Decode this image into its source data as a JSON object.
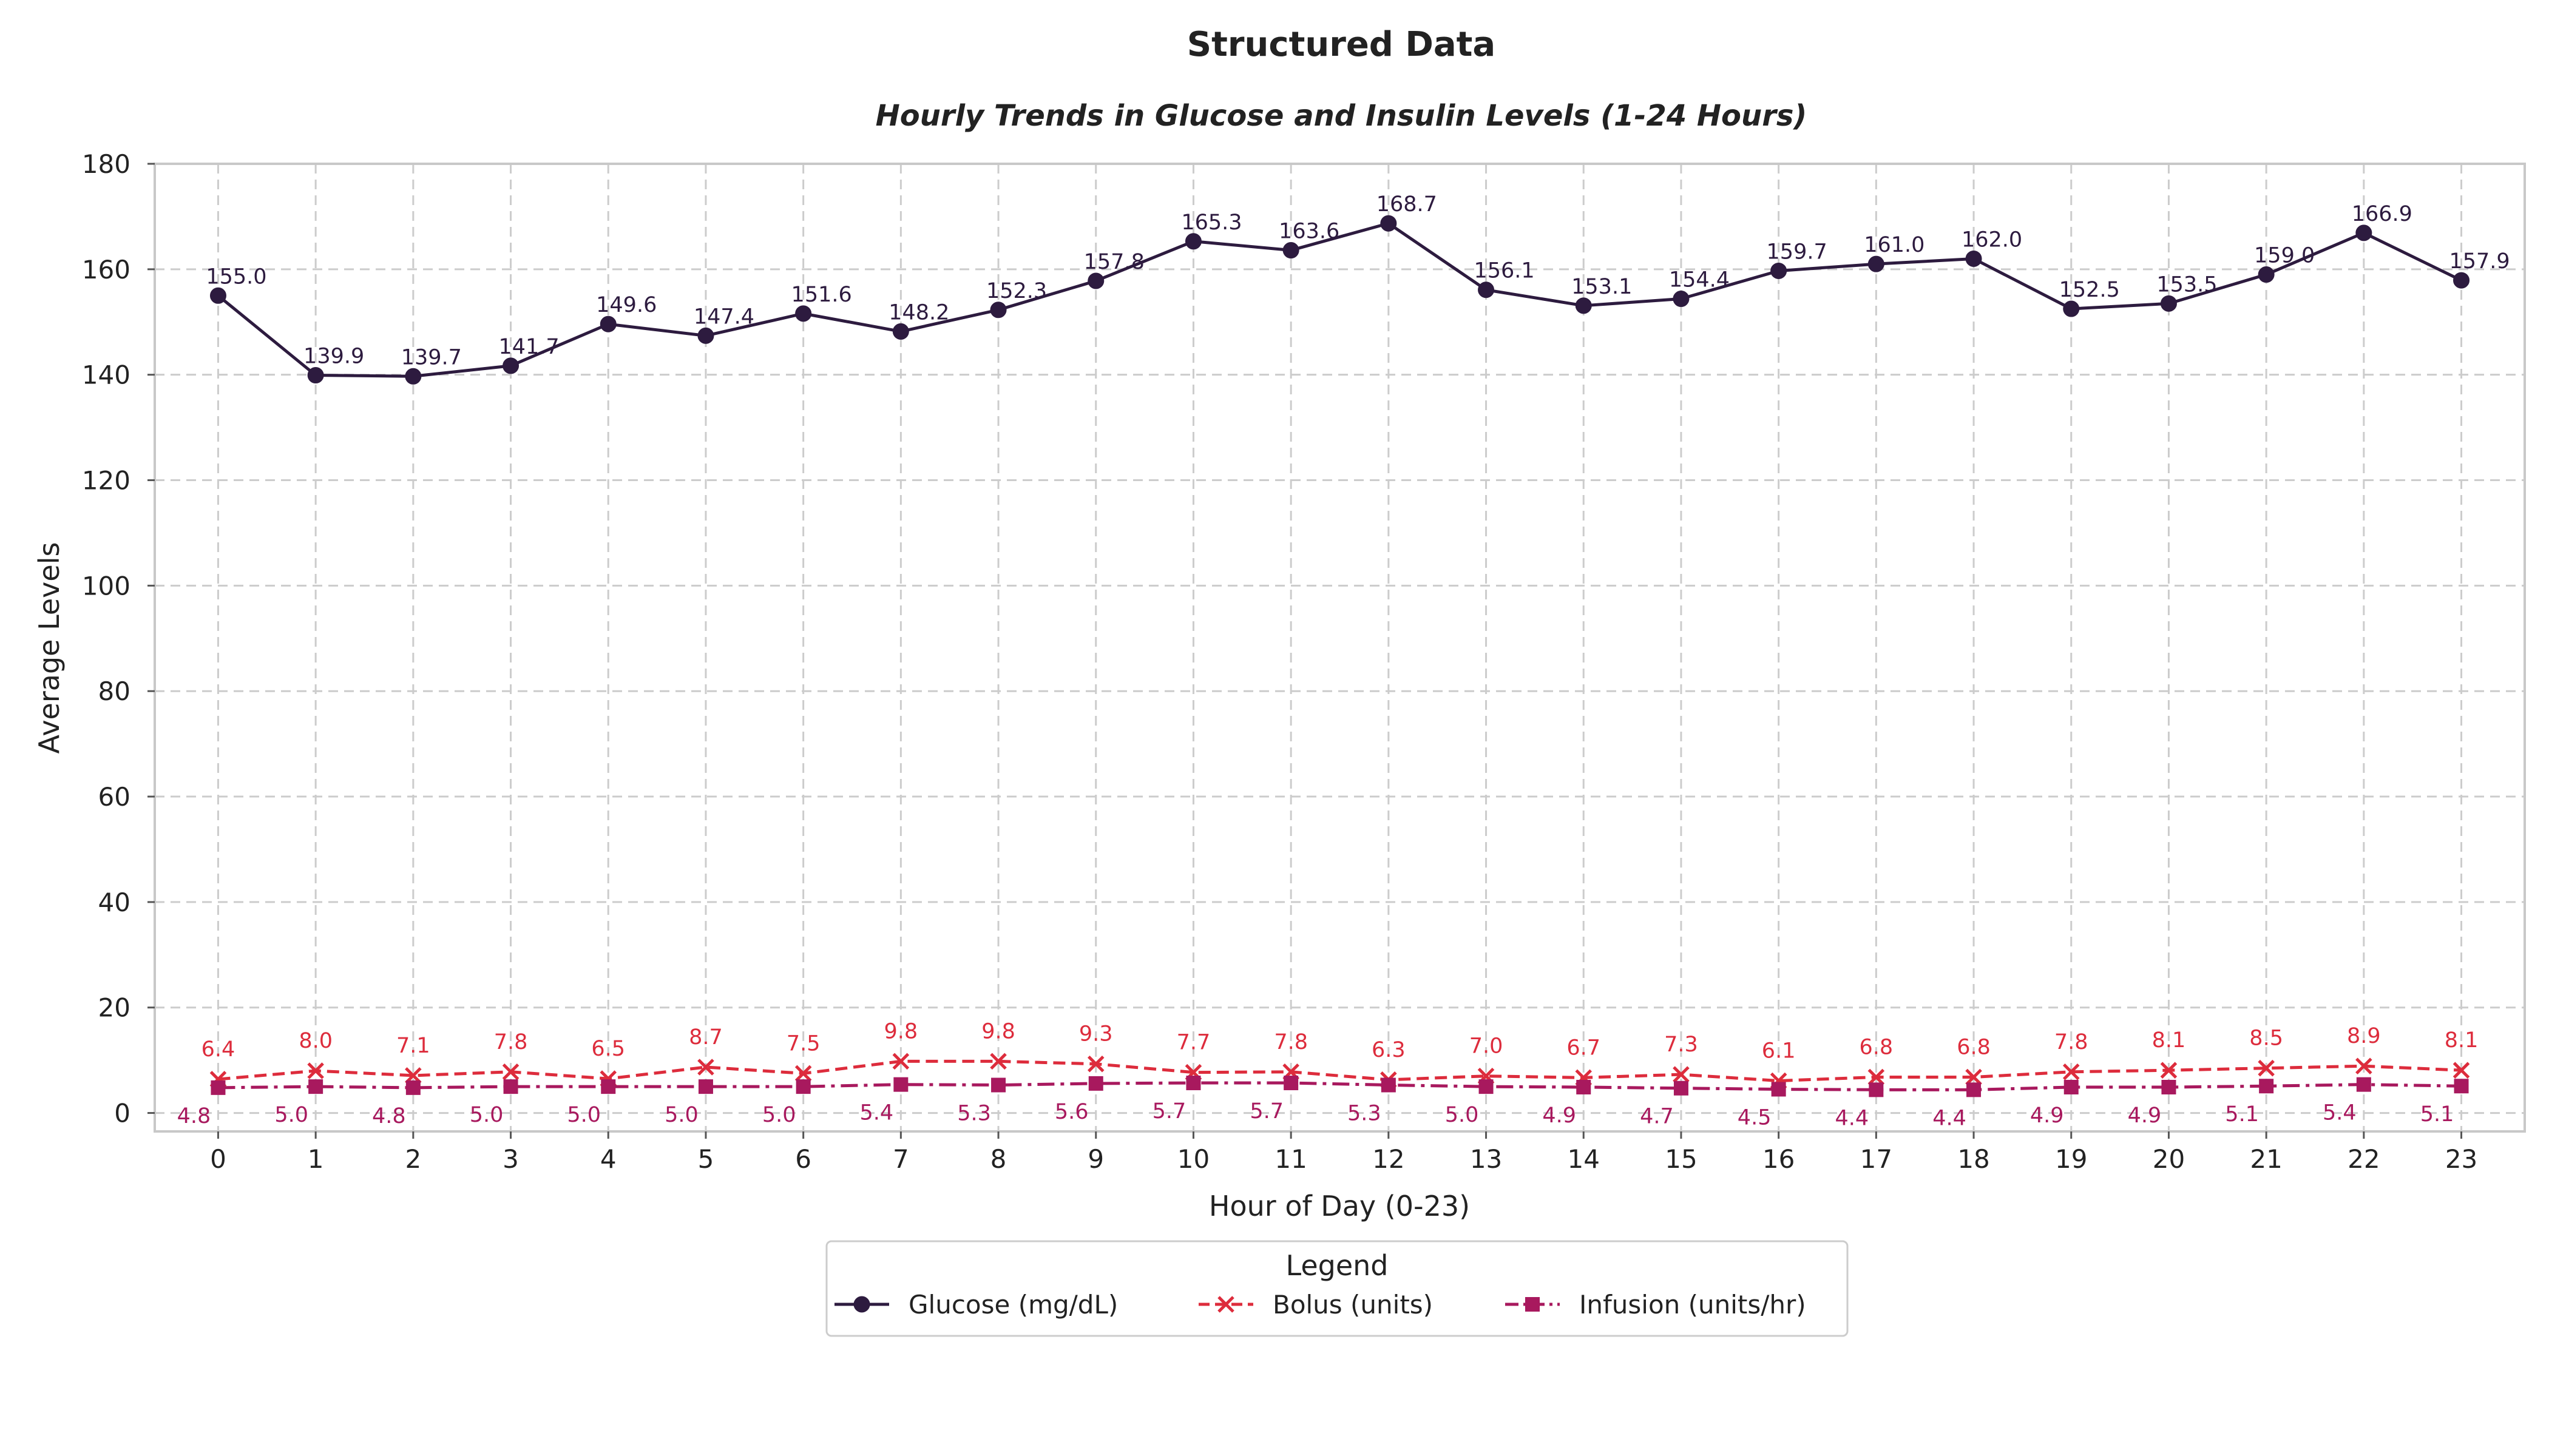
{
  "figure_title": "Structured Data",
  "chart_data": {
    "type": "line",
    "title": "Hourly Trends in Glucose and Insulin Levels (1-24 Hours)",
    "xlabel": "Hour of Day (0-23)",
    "ylabel": "Average Levels",
    "x": [
      0,
      1,
      2,
      3,
      4,
      5,
      6,
      7,
      8,
      9,
      10,
      11,
      12,
      13,
      14,
      15,
      16,
      17,
      18,
      19,
      20,
      21,
      22,
      23
    ],
    "ylim": [
      -3.5,
      180
    ],
    "yticks": [
      0,
      20,
      40,
      60,
      80,
      100,
      120,
      140,
      160,
      180
    ],
    "grid": true,
    "legend": {
      "title": "Legend",
      "placement": "below-center"
    },
    "series": [
      {
        "name": "Glucose (mg/dL)",
        "color": "#2d1b3f",
        "marker": "circle",
        "line_style": "solid",
        "values": [
          155.0,
          139.9,
          139.7,
          141.7,
          149.6,
          147.4,
          151.6,
          148.2,
          152.3,
          157.8,
          165.3,
          163.6,
          168.7,
          156.1,
          153.1,
          154.4,
          159.7,
          161.0,
          162.0,
          152.5,
          153.5,
          159.0,
          166.9,
          157.9
        ],
        "labels": [
          "155.0",
          "139.9",
          "139.7",
          "141.7",
          "149.6",
          "147.4",
          "151.6",
          "148.2",
          "152.3",
          "157.8",
          "165.3",
          "163.6",
          "168.7",
          "156.1",
          "153.1",
          "154.4",
          "159.7",
          "161.0",
          "162.0",
          "152.5",
          "153.5",
          "159.0",
          "166.9",
          "157.9"
        ]
      },
      {
        "name": "Bolus (units)",
        "color": "#dd2c3c",
        "marker": "x",
        "line_style": "dashed",
        "values": [
          6.4,
          8.0,
          7.1,
          7.8,
          6.5,
          8.7,
          7.5,
          9.8,
          9.8,
          9.3,
          7.7,
          7.8,
          6.3,
          7.0,
          6.7,
          7.3,
          6.1,
          6.8,
          6.8,
          7.8,
          8.1,
          8.5,
          8.9,
          8.1
        ],
        "labels": [
          "6.4",
          "8.0",
          "7.1",
          "7.8",
          "6.5",
          "8.7",
          "7.5",
          "9.8",
          "9.8",
          "9.3",
          "7.7",
          "7.8",
          "6.3",
          "7.0",
          "6.7",
          "7.3",
          "6.1",
          "6.8",
          "6.8",
          "7.8",
          "8.1",
          "8.5",
          "8.9",
          "8.1"
        ]
      },
      {
        "name": "Infusion (units/hr)",
        "color": "#a8195e",
        "marker": "square",
        "line_style": "dashdot",
        "values": [
          4.8,
          5.0,
          4.8,
          5.0,
          5.0,
          5.0,
          5.0,
          5.4,
          5.3,
          5.6,
          5.7,
          5.7,
          5.3,
          5.0,
          4.9,
          4.7,
          4.5,
          4.4,
          4.4,
          4.9,
          4.9,
          5.1,
          5.4,
          5.1
        ],
        "labels": [
          "4.8",
          "5.0",
          "4.8",
          "5.0",
          "5.0",
          "5.0",
          "5.0",
          "5.4",
          "5.3",
          "5.6",
          "5.7",
          "5.7",
          "5.3",
          "5.0",
          "4.9",
          "4.7",
          "4.5",
          "4.4",
          "4.4",
          "4.9",
          "4.9",
          "5.1",
          "5.4",
          "5.1"
        ]
      }
    ]
  }
}
